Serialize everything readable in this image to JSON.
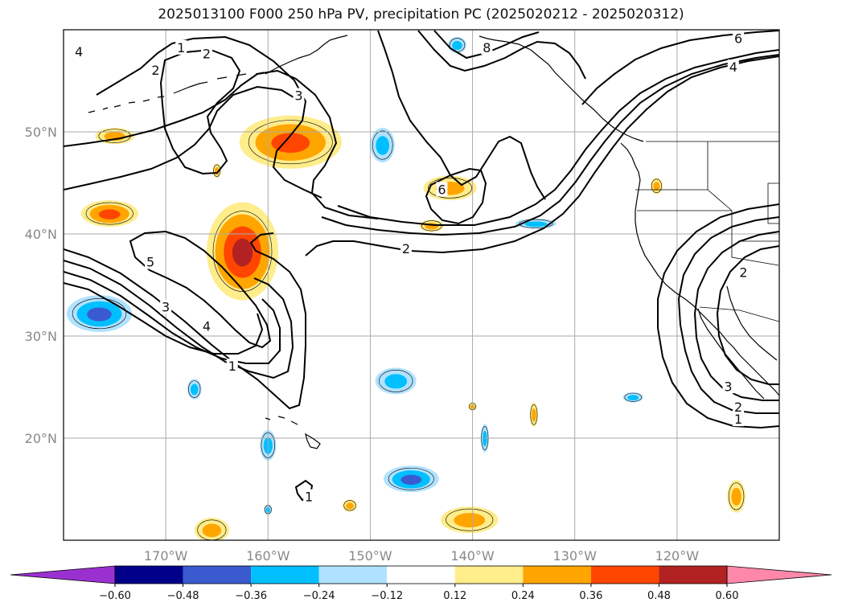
{
  "title": "2025013100 F000 250 hPa PV, precipitation PC (2025020212 - 2025020312)",
  "map": {
    "lon_range": [
      -180,
      -110
    ],
    "lat_range": [
      10,
      60
    ],
    "lat_ticks": [
      {
        "value": 20,
        "label": "20°N"
      },
      {
        "value": 30,
        "label": "30°N"
      },
      {
        "value": 40,
        "label": "40°N"
      },
      {
        "value": 50,
        "label": "50°N"
      }
    ],
    "lon_ticks": [
      {
        "value": -170,
        "label": "170°W"
      },
      {
        "value": -160,
        "label": "160°W"
      },
      {
        "value": -150,
        "label": "150°W"
      },
      {
        "value": -140,
        "label": "140°W"
      },
      {
        "value": -130,
        "label": "130°W"
      },
      {
        "value": -120,
        "label": "120°W"
      }
    ],
    "gridlines": true
  },
  "contour_labels": [
    {
      "text": "1",
      "lon": -168.5,
      "lat": 58.2
    },
    {
      "text": "2",
      "lon": -166.0,
      "lat": 57.6
    },
    {
      "text": "2",
      "lon": -171.0,
      "lat": 56.0
    },
    {
      "text": "4",
      "lon": -178.5,
      "lat": 57.8
    },
    {
      "text": "3",
      "lon": -157.0,
      "lat": 53.5
    },
    {
      "text": "8",
      "lon": -138.6,
      "lat": 58.2
    },
    {
      "text": "6",
      "lon": -114.0,
      "lat": 59.1
    },
    {
      "text": "4",
      "lon": -114.5,
      "lat": 56.3
    },
    {
      "text": "6",
      "lon": -143.0,
      "lat": 44.3
    },
    {
      "text": "2",
      "lon": -146.5,
      "lat": 38.5
    },
    {
      "text": "5",
      "lon": -171.5,
      "lat": 37.2
    },
    {
      "text": "3",
      "lon": -170.0,
      "lat": 32.8
    },
    {
      "text": "4",
      "lon": -166.0,
      "lat": 30.9
    },
    {
      "text": "1",
      "lon": -163.5,
      "lat": 27.0
    },
    {
      "text": "2",
      "lon": -113.5,
      "lat": 36.2
    },
    {
      "text": "3",
      "lon": -115.0,
      "lat": 25.0
    },
    {
      "text": "2",
      "lon": -114.0,
      "lat": 23.0
    },
    {
      "text": "1",
      "lon": -114.0,
      "lat": 21.8
    },
    {
      "text": "1",
      "lon": -156.0,
      "lat": 14.2
    }
  ],
  "colorbar": {
    "levels": [
      -0.6,
      -0.48,
      -0.36,
      -0.24,
      -0.12,
      0.12,
      0.24,
      0.36,
      0.48,
      0.6
    ],
    "tick_labels": [
      "−0.60",
      "−0.48",
      "−0.36",
      "−0.24",
      "−0.12",
      "0.12",
      "0.24",
      "0.36",
      "0.48",
      "0.60"
    ],
    "colors": [
      "#9b30d0",
      "#00008b",
      "#3a5ad0",
      "#00bfff",
      "#b0e2ff",
      "#ffffff",
      "#ffec8b",
      "#ffa500",
      "#ff4500",
      "#b22222",
      "#ff88aa"
    ]
  },
  "precip_blobs": [
    {
      "lon": -157.8,
      "lat": 49.0,
      "rx": 5.0,
      "ry": 2.6,
      "level": 2
    },
    {
      "lon": -162.5,
      "lat": 38.3,
      "rx": 3.5,
      "ry": 4.8,
      "level": 3
    },
    {
      "lon": -175.5,
      "lat": 42.0,
      "rx": 2.8,
      "ry": 1.3,
      "level": 2
    },
    {
      "lon": -175.0,
      "lat": 49.6,
      "rx": 1.9,
      "ry": 0.8,
      "level": 1
    },
    {
      "lon": -142.2,
      "lat": 44.5,
      "rx": 2.6,
      "ry": 1.2,
      "level": 1
    },
    {
      "lon": -144.0,
      "lat": 40.8,
      "rx": 1.2,
      "ry": 0.6,
      "level": 1
    },
    {
      "lon": -140.3,
      "lat": 12.0,
      "rx": 2.8,
      "ry": 1.3,
      "level": 1
    },
    {
      "lon": -165.5,
      "lat": 11.0,
      "rx": 1.7,
      "ry": 1.2,
      "level": 1
    },
    {
      "lon": -114.2,
      "lat": 14.3,
      "rx": 0.9,
      "ry": 1.6,
      "level": 1
    },
    {
      "lon": -152.0,
      "lat": 13.4,
      "rx": 0.7,
      "ry": 0.6,
      "level": 1
    },
    {
      "lon": -134.0,
      "lat": 22.3,
      "rx": 0.4,
      "ry": 1.2,
      "level": 1
    },
    {
      "lon": -165.0,
      "lat": 46.2,
      "rx": 0.4,
      "ry": 0.7,
      "level": 1
    },
    {
      "lon": -122.0,
      "lat": 44.7,
      "rx": 0.6,
      "ry": 0.8,
      "level": 1
    },
    {
      "lon": -140.0,
      "lat": 23.1,
      "rx": 0.4,
      "ry": 0.4,
      "level": 1
    },
    {
      "lon": -176.5,
      "lat": 32.2,
      "rx": 3.2,
      "ry": 1.8,
      "level": -2
    },
    {
      "lon": -146.0,
      "lat": 16.0,
      "rx": 2.7,
      "ry": 1.3,
      "level": -2
    },
    {
      "lon": -147.5,
      "lat": 25.6,
      "rx": 2.0,
      "ry": 1.3,
      "level": -1
    },
    {
      "lon": -133.8,
      "lat": 41.0,
      "rx": 2.0,
      "ry": 0.5,
      "level": -1
    },
    {
      "lon": -160.0,
      "lat": 19.3,
      "rx": 0.8,
      "ry": 1.5,
      "level": -1
    },
    {
      "lon": -167.2,
      "lat": 24.8,
      "rx": 0.7,
      "ry": 1.0,
      "level": -1
    },
    {
      "lon": -148.8,
      "lat": 48.7,
      "rx": 1.2,
      "ry": 1.7,
      "level": -1
    },
    {
      "lon": -141.5,
      "lat": 58.5,
      "rx": 0.9,
      "ry": 0.8,
      "level": -1
    },
    {
      "lon": -124.3,
      "lat": 24.0,
      "rx": 1.0,
      "ry": 0.5,
      "level": -1
    },
    {
      "lon": -138.8,
      "lat": 20.0,
      "rx": 0.4,
      "ry": 1.4,
      "level": -1
    },
    {
      "lon": -160.0,
      "lat": 13.0,
      "rx": 0.4,
      "ry": 0.5,
      "level": -1
    }
  ]
}
